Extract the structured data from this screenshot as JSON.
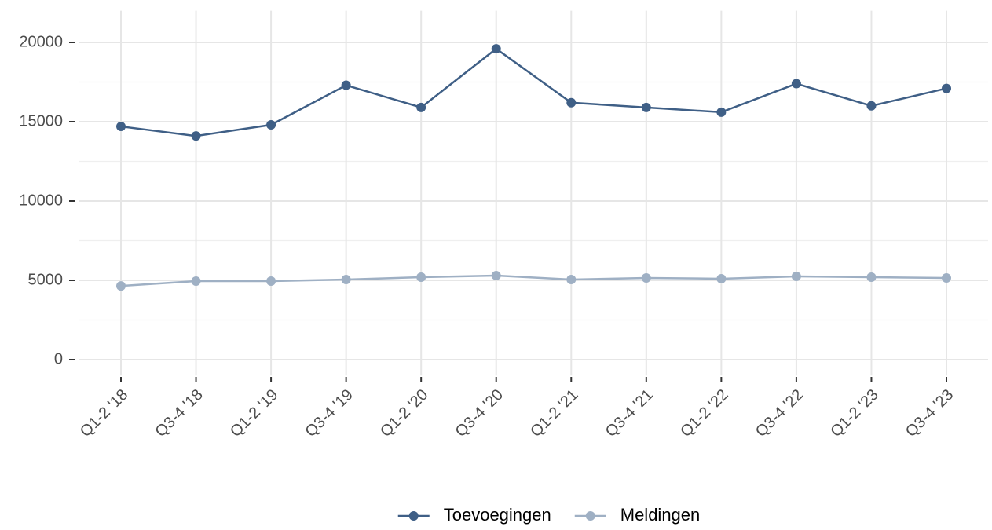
{
  "chart_data": {
    "type": "line",
    "categories": [
      "Q1-2 '18",
      "Q3-4 '18",
      "Q1-2 '19",
      "Q3-4 '19",
      "Q1-2 '20",
      "Q3-4 '20",
      "Q1-2 '21",
      "Q3-4 '21",
      "Q1-2 '22",
      "Q3-4 '22",
      "Q1-2 '23",
      "Q3-4 '23"
    ],
    "series": [
      {
        "name": "Toevoegingen",
        "color": "#3f5f86",
        "values": [
          14700,
          14100,
          14800,
          17300,
          15900,
          19600,
          16200,
          15900,
          15600,
          17400,
          16000,
          17100
        ]
      },
      {
        "name": "Meldingen",
        "color": "#9fb0c4",
        "values": [
          4650,
          4950,
          4950,
          5050,
          5200,
          5300,
          5050,
          5150,
          5100,
          5250,
          5200,
          5150
        ]
      }
    ],
    "ylim": [
      -1000,
      22000
    ],
    "yticks": [
      0,
      5000,
      10000,
      15000,
      20000
    ],
    "grid": true,
    "legend": "bottom"
  }
}
